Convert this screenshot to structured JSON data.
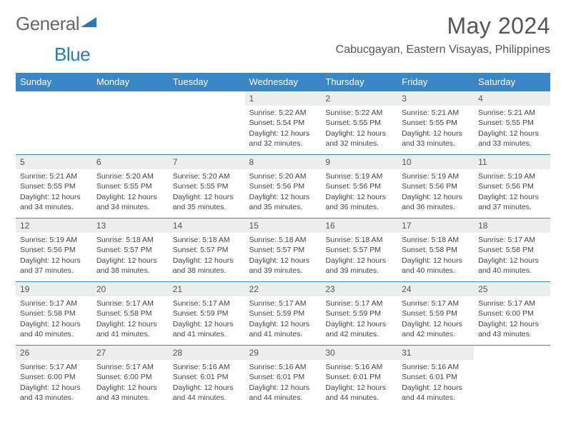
{
  "brand": {
    "left": "General",
    "right": "Blue"
  },
  "title": "May 2024",
  "location": "Cabucgayan, Eastern Visayas, Philippines",
  "weekdays": [
    "Sunday",
    "Monday",
    "Tuesday",
    "Wednesday",
    "Thursday",
    "Friday",
    "Saturday"
  ],
  "colors": {
    "header_bg": "#3a87c7",
    "header_text": "#ffffff",
    "rule": "#3a87c7",
    "daybar": "#eceeee",
    "text": "#444444",
    "title": "#555555"
  },
  "weeks": [
    [
      {
        "n": "",
        "sr": "",
        "ss": "",
        "dl": ""
      },
      {
        "n": "",
        "sr": "",
        "ss": "",
        "dl": ""
      },
      {
        "n": "",
        "sr": "",
        "ss": "",
        "dl": ""
      },
      {
        "n": "1",
        "sr": "Sunrise: 5:22 AM",
        "ss": "Sunset: 5:54 PM",
        "dl": "Daylight: 12 hours and 32 minutes."
      },
      {
        "n": "2",
        "sr": "Sunrise: 5:22 AM",
        "ss": "Sunset: 5:55 PM",
        "dl": "Daylight: 12 hours and 32 minutes."
      },
      {
        "n": "3",
        "sr": "Sunrise: 5:21 AM",
        "ss": "Sunset: 5:55 PM",
        "dl": "Daylight: 12 hours and 33 minutes."
      },
      {
        "n": "4",
        "sr": "Sunrise: 5:21 AM",
        "ss": "Sunset: 5:55 PM",
        "dl": "Daylight: 12 hours and 33 minutes."
      }
    ],
    [
      {
        "n": "5",
        "sr": "Sunrise: 5:21 AM",
        "ss": "Sunset: 5:55 PM",
        "dl": "Daylight: 12 hours and 34 minutes."
      },
      {
        "n": "6",
        "sr": "Sunrise: 5:20 AM",
        "ss": "Sunset: 5:55 PM",
        "dl": "Daylight: 12 hours and 34 minutes."
      },
      {
        "n": "7",
        "sr": "Sunrise: 5:20 AM",
        "ss": "Sunset: 5:55 PM",
        "dl": "Daylight: 12 hours and 35 minutes."
      },
      {
        "n": "8",
        "sr": "Sunrise: 5:20 AM",
        "ss": "Sunset: 5:56 PM",
        "dl": "Daylight: 12 hours and 35 minutes."
      },
      {
        "n": "9",
        "sr": "Sunrise: 5:19 AM",
        "ss": "Sunset: 5:56 PM",
        "dl": "Daylight: 12 hours and 36 minutes."
      },
      {
        "n": "10",
        "sr": "Sunrise: 5:19 AM",
        "ss": "Sunset: 5:56 PM",
        "dl": "Daylight: 12 hours and 36 minutes."
      },
      {
        "n": "11",
        "sr": "Sunrise: 5:19 AM",
        "ss": "Sunset: 5:56 PM",
        "dl": "Daylight: 12 hours and 37 minutes."
      }
    ],
    [
      {
        "n": "12",
        "sr": "Sunrise: 5:19 AM",
        "ss": "Sunset: 5:56 PM",
        "dl": "Daylight: 12 hours and 37 minutes."
      },
      {
        "n": "13",
        "sr": "Sunrise: 5:18 AM",
        "ss": "Sunset: 5:57 PM",
        "dl": "Daylight: 12 hours and 38 minutes."
      },
      {
        "n": "14",
        "sr": "Sunrise: 5:18 AM",
        "ss": "Sunset: 5:57 PM",
        "dl": "Daylight: 12 hours and 38 minutes."
      },
      {
        "n": "15",
        "sr": "Sunrise: 5:18 AM",
        "ss": "Sunset: 5:57 PM",
        "dl": "Daylight: 12 hours and 39 minutes."
      },
      {
        "n": "16",
        "sr": "Sunrise: 5:18 AM",
        "ss": "Sunset: 5:57 PM",
        "dl": "Daylight: 12 hours and 39 minutes."
      },
      {
        "n": "17",
        "sr": "Sunrise: 5:18 AM",
        "ss": "Sunset: 5:58 PM",
        "dl": "Daylight: 12 hours and 40 minutes."
      },
      {
        "n": "18",
        "sr": "Sunrise: 5:17 AM",
        "ss": "Sunset: 5:58 PM",
        "dl": "Daylight: 12 hours and 40 minutes."
      }
    ],
    [
      {
        "n": "19",
        "sr": "Sunrise: 5:17 AM",
        "ss": "Sunset: 5:58 PM",
        "dl": "Daylight: 12 hours and 40 minutes."
      },
      {
        "n": "20",
        "sr": "Sunrise: 5:17 AM",
        "ss": "Sunset: 5:58 PM",
        "dl": "Daylight: 12 hours and 41 minutes."
      },
      {
        "n": "21",
        "sr": "Sunrise: 5:17 AM",
        "ss": "Sunset: 5:59 PM",
        "dl": "Daylight: 12 hours and 41 minutes."
      },
      {
        "n": "22",
        "sr": "Sunrise: 5:17 AM",
        "ss": "Sunset: 5:59 PM",
        "dl": "Daylight: 12 hours and 41 minutes."
      },
      {
        "n": "23",
        "sr": "Sunrise: 5:17 AM",
        "ss": "Sunset: 5:59 PM",
        "dl": "Daylight: 12 hours and 42 minutes."
      },
      {
        "n": "24",
        "sr": "Sunrise: 5:17 AM",
        "ss": "Sunset: 5:59 PM",
        "dl": "Daylight: 12 hours and 42 minutes."
      },
      {
        "n": "25",
        "sr": "Sunrise: 5:17 AM",
        "ss": "Sunset: 6:00 PM",
        "dl": "Daylight: 12 hours and 43 minutes."
      }
    ],
    [
      {
        "n": "26",
        "sr": "Sunrise: 5:17 AM",
        "ss": "Sunset: 6:00 PM",
        "dl": "Daylight: 12 hours and 43 minutes."
      },
      {
        "n": "27",
        "sr": "Sunrise: 5:17 AM",
        "ss": "Sunset: 6:00 PM",
        "dl": "Daylight: 12 hours and 43 minutes."
      },
      {
        "n": "28",
        "sr": "Sunrise: 5:16 AM",
        "ss": "Sunset: 6:01 PM",
        "dl": "Daylight: 12 hours and 44 minutes."
      },
      {
        "n": "29",
        "sr": "Sunrise: 5:16 AM",
        "ss": "Sunset: 6:01 PM",
        "dl": "Daylight: 12 hours and 44 minutes."
      },
      {
        "n": "30",
        "sr": "Sunrise: 5:16 AM",
        "ss": "Sunset: 6:01 PM",
        "dl": "Daylight: 12 hours and 44 minutes."
      },
      {
        "n": "31",
        "sr": "Sunrise: 5:16 AM",
        "ss": "Sunset: 6:01 PM",
        "dl": "Daylight: 12 hours and 44 minutes."
      },
      {
        "n": "",
        "sr": "",
        "ss": "",
        "dl": ""
      }
    ]
  ]
}
